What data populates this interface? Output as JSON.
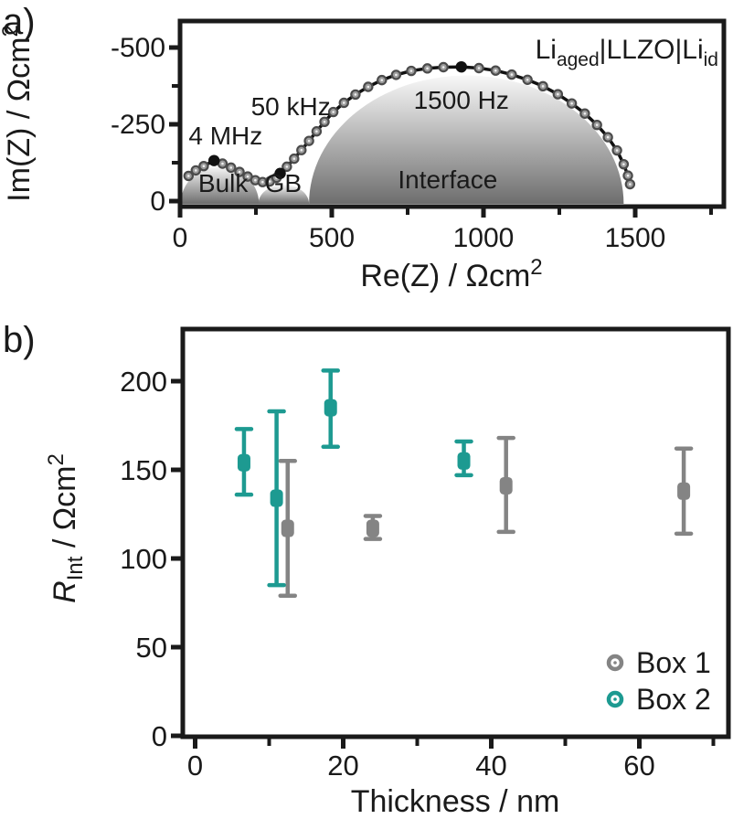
{
  "figure": {
    "panel_a_tag": "a)",
    "panel_b_tag": "b)",
    "colors": {
      "ink": "#1a1a1a",
      "curve_black": "#111111",
      "circle_marker_fill": "#9c9c9c",
      "circle_marker_ring": "#4b4b4b",
      "semicircle_fill_top": "#f8f8f8",
      "semicircle_fill_bottom": "#6e6e6e",
      "box1_gray": "#848484",
      "box2_teal": "#1d9a91"
    }
  },
  "chart_data": [
    {
      "type": "line",
      "name": "nyquist-impedance-plot",
      "title_rich": [
        {
          "text": "Li"
        },
        {
          "text": "aged",
          "style": "sub"
        },
        {
          "text": "|LLZO|Li"
        },
        {
          "text": "id",
          "style": "sub"
        }
      ],
      "xlabel_rich": [
        {
          "text": "Re(Z) / Ωcm"
        },
        {
          "text": "2",
          "style": "sup"
        }
      ],
      "ylabel_rich": [
        {
          "text": "Im(Z) / Ωcm"
        },
        {
          "text": "2",
          "style": "sup"
        }
      ],
      "xlim": [
        0,
        1790
      ],
      "ylim": [
        0,
        -610
      ],
      "grid": false,
      "x_ticks_major": [
        0,
        500,
        1000,
        1500
      ],
      "x_ticks_minor": [
        250,
        750,
        1250,
        1750
      ],
      "y_ticks_major": [
        0,
        -250,
        -500
      ],
      "y_ticks_minor": [
        -125,
        -375
      ],
      "semicircle_regions": [
        {
          "label": "Bulk",
          "re_start": 2,
          "re_end": 260,
          "peak_im": 122
        },
        {
          "label": "GB",
          "re_start": 258,
          "re_end": 425,
          "peak_im": 62
        },
        {
          "label": "Interface",
          "re_start": 425,
          "re_end": 1462,
          "peak_im": 418
        }
      ],
      "curve_points_re_im": [
        [
          28,
          82
        ],
        [
          52,
          100
        ],
        [
          78,
          114
        ],
        [
          112,
          132
        ],
        [
          140,
          122
        ],
        [
          168,
          109
        ],
        [
          196,
          95
        ],
        [
          223,
          80
        ],
        [
          248,
          68
        ],
        [
          272,
          62
        ],
        [
          296,
          64
        ],
        [
          318,
          76
        ],
        [
          330,
          90
        ],
        [
          352,
          112
        ],
        [
          376,
          138
        ],
        [
          400,
          166
        ],
        [
          425,
          196
        ],
        [
          450,
          227
        ],
        [
          476,
          258
        ],
        [
          505,
          290
        ],
        [
          540,
          320
        ],
        [
          578,
          347
        ],
        [
          620,
          372
        ],
        [
          665,
          394
        ],
        [
          712,
          411
        ],
        [
          762,
          424
        ],
        [
          815,
          432
        ],
        [
          868,
          436
        ],
        [
          927,
          437
        ],
        [
          985,
          433
        ],
        [
          1040,
          425
        ],
        [
          1093,
          412
        ],
        [
          1145,
          395
        ],
        [
          1196,
          374
        ],
        [
          1245,
          348
        ],
        [
          1291,
          318
        ],
        [
          1334,
          285
        ],
        [
          1374,
          248
        ],
        [
          1410,
          208
        ],
        [
          1440,
          165
        ],
        [
          1462,
          120
        ],
        [
          1476,
          83
        ],
        [
          1483,
          55
        ]
      ],
      "highlight_points": [
        {
          "re": 112,
          "im": 132,
          "label": "4 MHz"
        },
        {
          "re": 330,
          "im": 90,
          "label": "50 kHz"
        },
        {
          "re": 927,
          "im": 437,
          "label": "1500 Hz"
        }
      ],
      "annotations": [
        {
          "text": "4 MHz",
          "re": 150,
          "im": 185
        },
        {
          "text": "50 kHz",
          "re": 365,
          "im": 280
        },
        {
          "text": "1500 Hz",
          "re": 927,
          "im": 300
        },
        {
          "text": "Bulk",
          "re": 142,
          "im": 30
        },
        {
          "text": "GB",
          "re": 340,
          "im": 30
        },
        {
          "text": "Interface",
          "re": 882,
          "im": 42
        }
      ]
    },
    {
      "type": "scatter",
      "name": "interface-resistance-vs-thickness",
      "xlabel": "Thickness / nm",
      "ylabel_rich": [
        {
          "text": "R",
          "style": "italic"
        },
        {
          "text": "Int",
          "style": "sub"
        },
        {
          "text": " / Ωcm"
        },
        {
          "text": "2",
          "style": "sup"
        }
      ],
      "xlim": [
        -2,
        72
      ],
      "ylim": [
        0,
        229
      ],
      "grid": false,
      "x_ticks_major": [
        0,
        20,
        40,
        60
      ],
      "x_ticks_minor": [
        10,
        30,
        50,
        70
      ],
      "y_ticks_major": [
        0,
        50,
        100,
        150,
        200
      ],
      "legend": {
        "position": "lower-right",
        "entries": [
          {
            "label": "Box 1",
            "color": "#848484"
          },
          {
            "label": "Box 2",
            "color": "#1d9a91"
          }
        ]
      },
      "series": [
        {
          "name": "Box 1",
          "color": "#848484",
          "points": [
            {
              "x": 12.5,
              "y": 117,
              "y_lo": 79,
              "y_hi": 155
            },
            {
              "x": 24,
              "y": 117,
              "y_lo": 111,
              "y_hi": 124
            },
            {
              "x": 42,
              "y": 141,
              "y_lo": 115,
              "y_hi": 168
            },
            {
              "x": 66,
              "y": 138,
              "y_lo": 114,
              "y_hi": 162
            }
          ]
        },
        {
          "name": "Box 2",
          "color": "#1d9a91",
          "points": [
            {
              "x": 6.6,
              "y": 154,
              "y_lo": 136,
              "y_hi": 173
            },
            {
              "x": 11,
              "y": 134,
              "y_lo": 85,
              "y_hi": 183
            },
            {
              "x": 18.3,
              "y": 185,
              "y_lo": 163,
              "y_hi": 206
            },
            {
              "x": 36.3,
              "y": 155,
              "y_lo": 147,
              "y_hi": 166
            }
          ]
        }
      ]
    }
  ]
}
